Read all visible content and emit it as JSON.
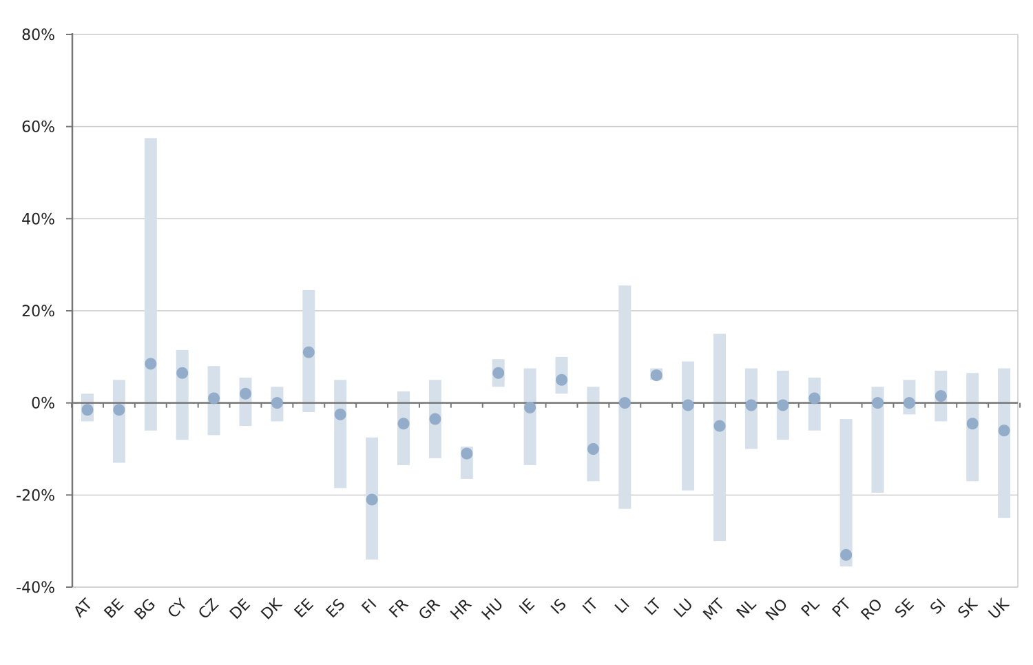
{
  "chart_data": {
    "type": "range_dot",
    "title": "",
    "xlabel": "",
    "ylabel": "",
    "ylim": [
      -40,
      80
    ],
    "y_ticks": [
      80,
      60,
      40,
      20,
      0,
      -20,
      -40
    ],
    "y_tick_labels": [
      "80%",
      "60%",
      "40%",
      "20%",
      "0%",
      "-20%",
      "-40%"
    ],
    "grid": "horizontal",
    "colors": {
      "bar": "#d6e0eb",
      "dot": "#93acc9",
      "grid": "#cccccc",
      "axis": "#777777"
    },
    "categories": [
      "AT",
      "BE",
      "BG",
      "CY",
      "CZ",
      "DE",
      "DK",
      "EE",
      "ES",
      "FI",
      "FR",
      "GR",
      "HR",
      "HU",
      "IE",
      "IS",
      "IT",
      "LI",
      "LT",
      "LU",
      "MT",
      "NL",
      "NO",
      "PL",
      "PT",
      "RO",
      "SE",
      "SI",
      "SK",
      "UK"
    ],
    "low": [
      -4,
      -13,
      -6,
      -8,
      -7,
      -5,
      -4,
      -2,
      -18.5,
      -34,
      -13.5,
      -12,
      -16.5,
      3.5,
      -13.5,
      2,
      -17,
      -23,
      5,
      -19,
      -30,
      -10,
      -8,
      -6,
      -35.5,
      -19.5,
      -2.5,
      -4,
      -17,
      -25
    ],
    "high": [
      2,
      5,
      57.5,
      11.5,
      8,
      5.5,
      3.5,
      24.5,
      5,
      -7.5,
      2.5,
      5,
      -9.5,
      9.5,
      7.5,
      10,
      3.5,
      25.5,
      7.5,
      9,
      15,
      7.5,
      7,
      5.5,
      -3.5,
      3.5,
      5,
      7,
      6.5,
      7.5
    ],
    "value": [
      -1.5,
      -1.5,
      8.5,
      6.5,
      1,
      2,
      0,
      11,
      -2.5,
      -21,
      -4.5,
      -3.5,
      -11,
      6.5,
      -1,
      5,
      -10,
      0,
      6,
      -0.5,
      -5,
      -0.5,
      -0.5,
      1,
      -33,
      0,
      0,
      1.5,
      -4.5,
      -6
    ]
  }
}
